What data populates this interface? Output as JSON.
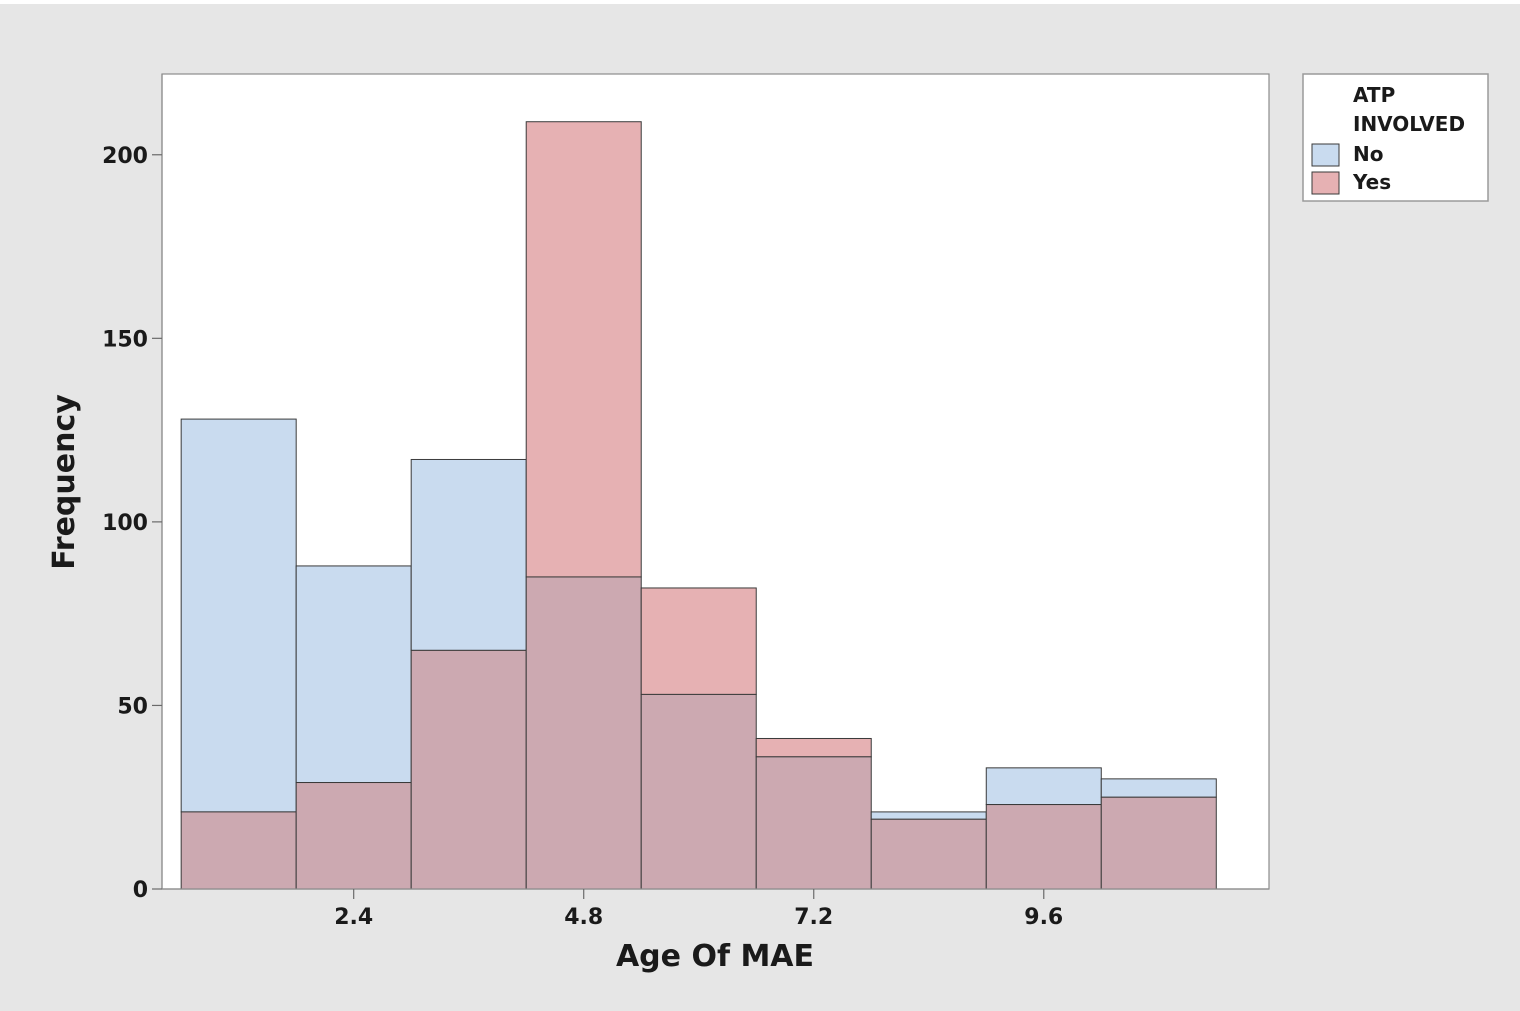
{
  "chart_data": {
    "type": "bar",
    "subtype": "overlaid-histogram",
    "title": "",
    "xlabel": "Age Of MAE",
    "ylabel": "Frequency",
    "x_ticks": [
      "2.4",
      "4.8",
      "7.2",
      "9.6"
    ],
    "x_tick_values": [
      2.4,
      4.8,
      7.2,
      9.6
    ],
    "y_ticks": [
      "0",
      "50",
      "100",
      "150",
      "200"
    ],
    "y_tick_values": [
      0,
      50,
      100,
      150,
      200
    ],
    "ylim": [
      0,
      222
    ],
    "xlim": [
      0.4,
      11.95
    ],
    "bin_width": 1.2,
    "bin_centers": [
      1.2,
      2.4,
      3.6,
      4.8,
      6.0,
      7.2,
      8.4,
      9.6,
      10.8
    ],
    "grid": false,
    "legend": {
      "title": "ATP INVOLVED",
      "title_lines": [
        "ATP",
        "INVOLVED"
      ],
      "placement": "right"
    },
    "series": [
      {
        "name": "No",
        "color": "#c9dbef",
        "values": [
          128,
          88,
          117,
          85,
          53,
          36,
          21,
          33,
          30
        ]
      },
      {
        "name": "Yes",
        "color": "#e6b1b3",
        "values": [
          21,
          29,
          65,
          209,
          82,
          41,
          19,
          23,
          25
        ]
      }
    ],
    "overlap_color": "#cca9b1",
    "colors": {
      "background": "#e6e6e6",
      "plot_background": "#ffffff",
      "bar_edge": "#3a3a3a"
    }
  }
}
